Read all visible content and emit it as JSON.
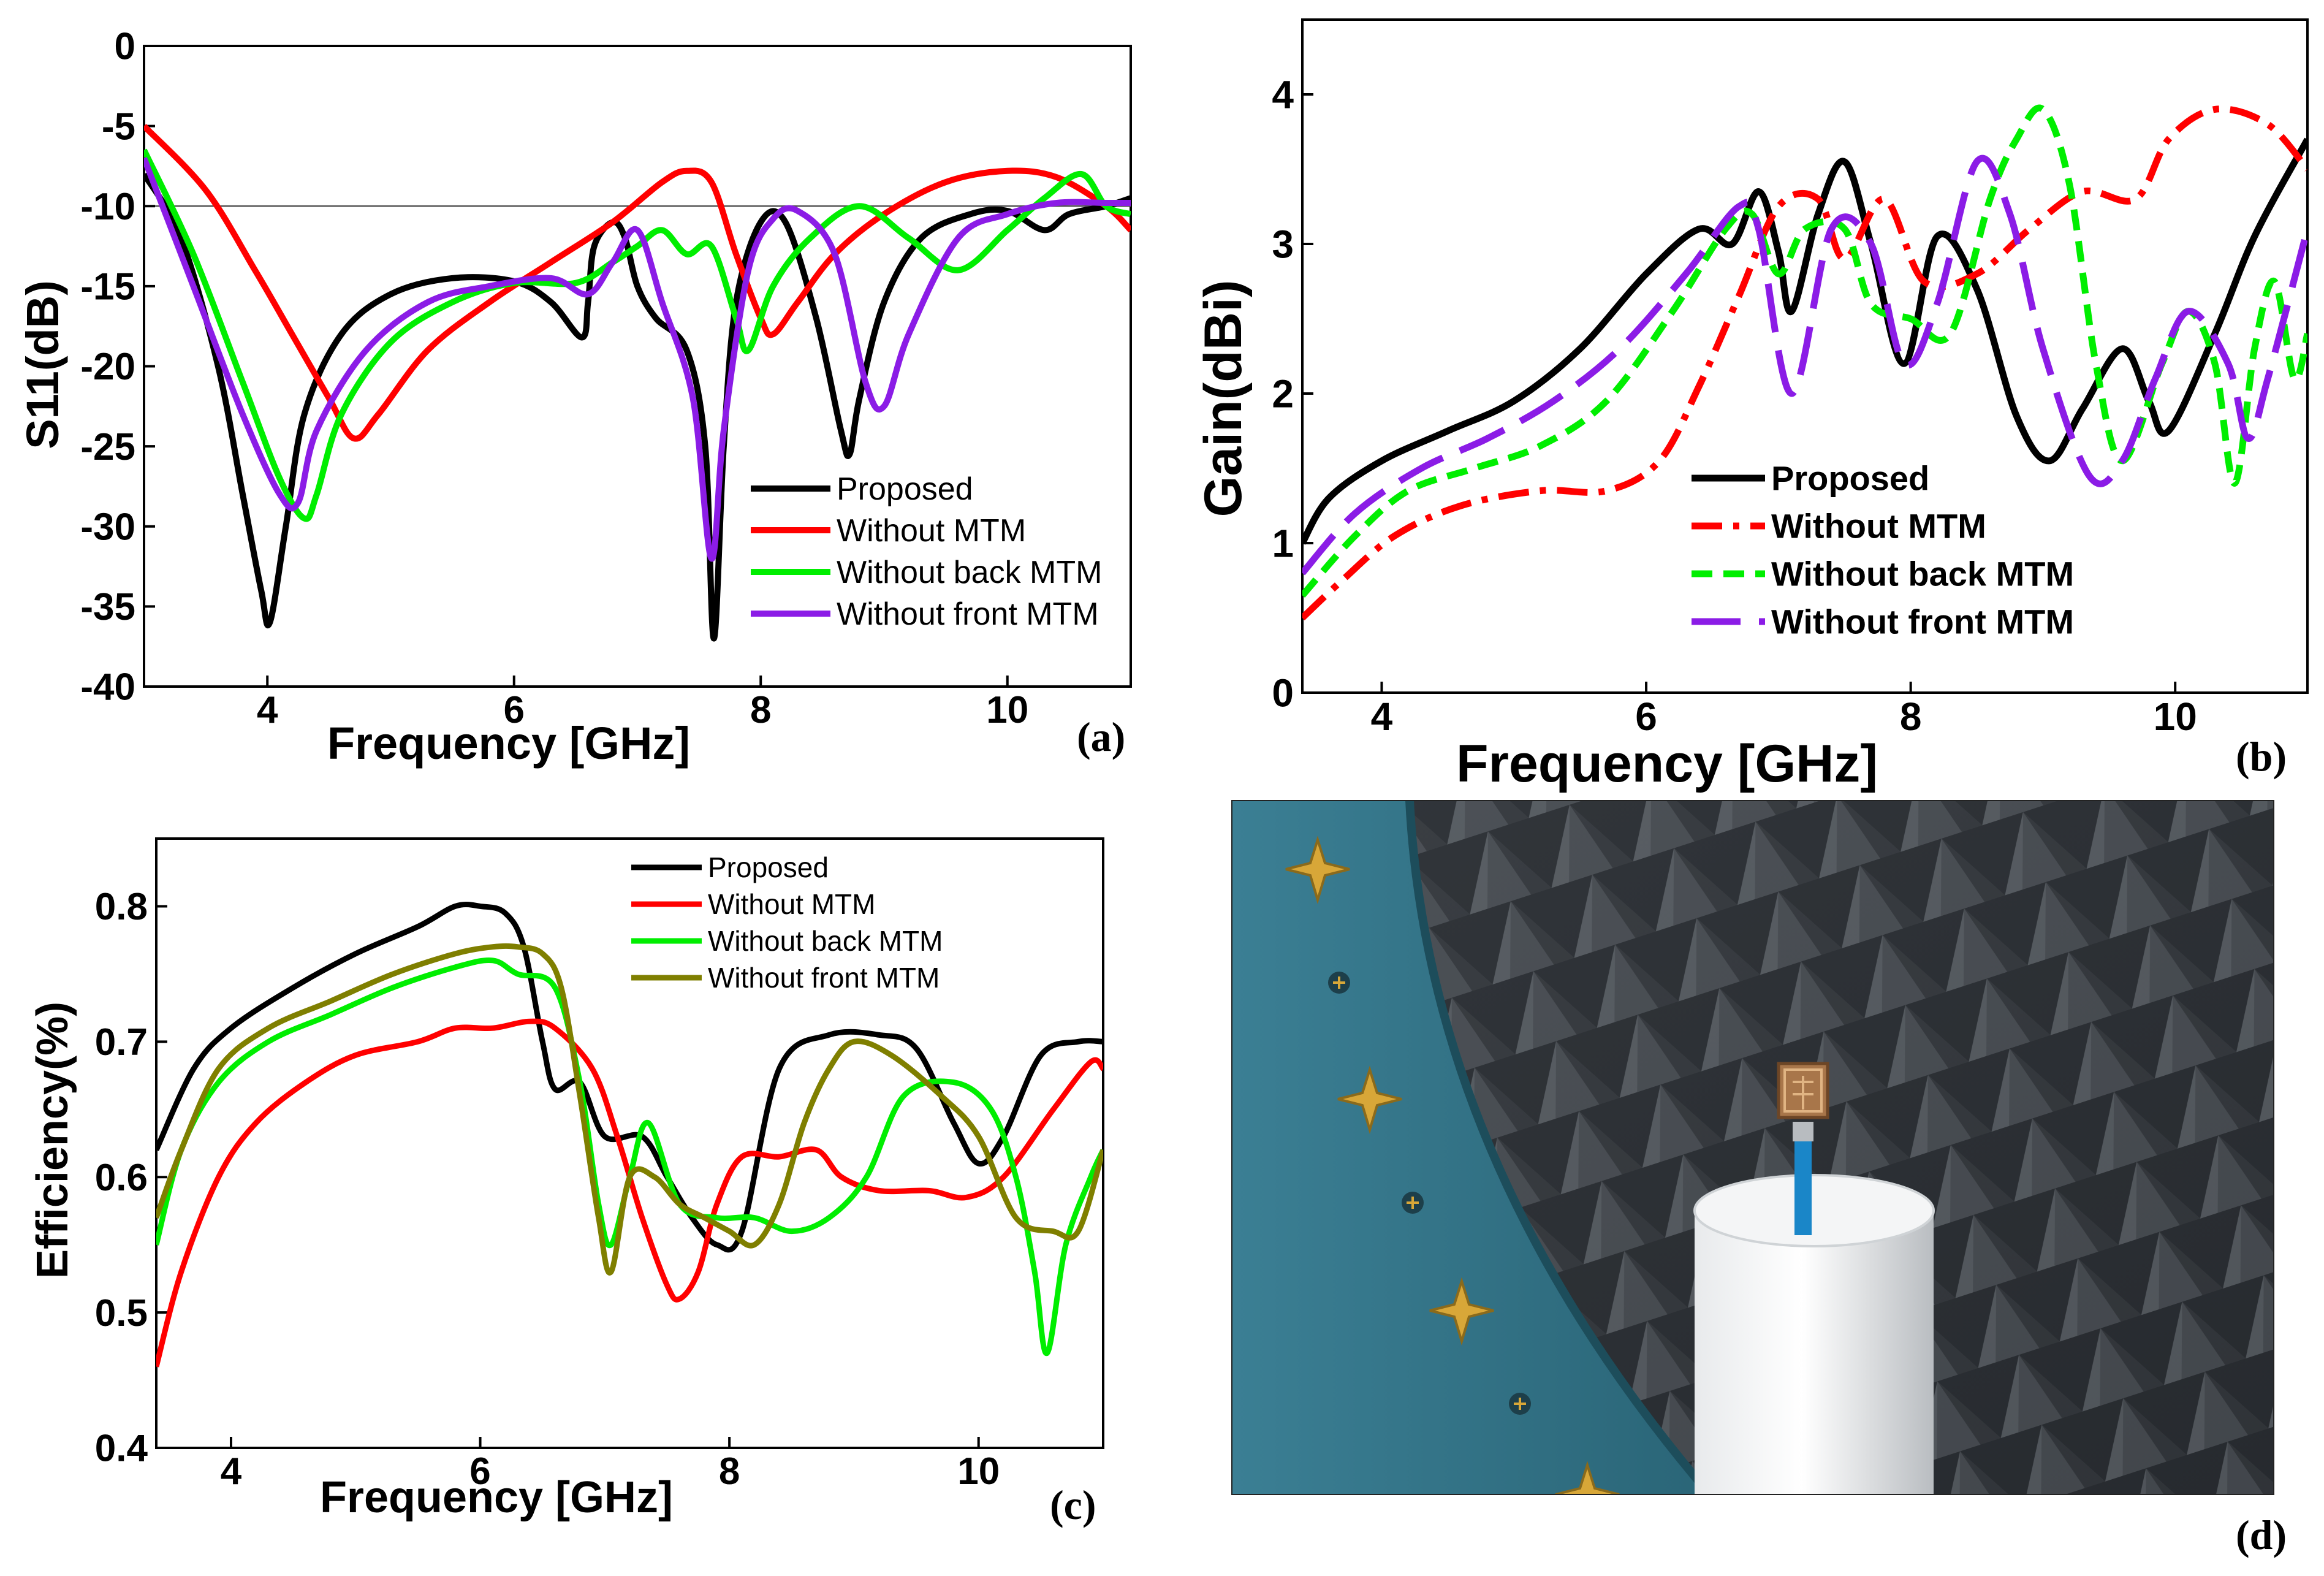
{
  "colors": {
    "proposed": "#000000",
    "without_mtm": "#ff0000",
    "without_back": "#00ee00",
    "without_front_purple": "#8b1ce6",
    "without_front_olive": "#7f7f00"
  },
  "panel_labels": {
    "a": "(a)",
    "b": "(b)",
    "c": "(c)",
    "d": "(d)"
  },
  "photo": {
    "description_icon": "anechoic-chamber-photo",
    "alt": "Antenna prototype mounted on foam cylinder inside anechoic chamber"
  },
  "chart_data": [
    {
      "id": "a",
      "type": "line",
      "title": "",
      "xlabel": "Frequency [GHz]",
      "ylabel": "S11(dB)",
      "xlim": [
        3,
        11
      ],
      "ylim": [
        -40,
        0
      ],
      "xticks": [
        4,
        6,
        8,
        10
      ],
      "yticks": [
        0,
        -5,
        -10,
        -15,
        -20,
        -25,
        -30,
        -35,
        -40
      ],
      "reference_line": -10,
      "legend_position": "lower-right",
      "series": [
        {
          "name": "Proposed",
          "color_key": "proposed",
          "dash": "solid",
          "x": [
            3,
            3.3,
            3.6,
            3.8,
            3.95,
            4.02,
            4.15,
            4.3,
            4.6,
            5,
            5.5,
            6,
            6.3,
            6.55,
            6.6,
            6.65,
            6.8,
            6.9,
            7,
            7.15,
            7.4,
            7.55,
            7.62,
            7.7,
            7.8,
            8,
            8.2,
            8.45,
            8.65,
            8.72,
            8.8,
            9,
            9.3,
            9.7,
            10,
            10.3,
            10.5,
            10.8,
            11
          ],
          "y": [
            -8,
            -12,
            -20,
            -28,
            -34,
            -36,
            -30,
            -23,
            -18,
            -15.5,
            -14.5,
            -14.7,
            -16,
            -18.2,
            -16,
            -12.5,
            -11,
            -12,
            -15,
            -17,
            -19,
            -25,
            -37,
            -25,
            -16,
            -11,
            -11,
            -17,
            -24,
            -25.5,
            -22,
            -16,
            -12,
            -10.5,
            -10.3,
            -11.5,
            -10.5,
            -10,
            -9.5
          ]
        },
        {
          "name": "Without MTM",
          "color_key": "without_mtm",
          "dash": "solid",
          "x": [
            3,
            3.5,
            3.9,
            4.2,
            4.5,
            4.7,
            4.9,
            5.3,
            5.8,
            6.3,
            6.8,
            7.2,
            7.4,
            7.6,
            7.8,
            8,
            8.1,
            8.3,
            8.6,
            9,
            9.5,
            10,
            10.4,
            10.8,
            11
          ],
          "y": [
            -5,
            -9,
            -14,
            -18,
            -22,
            -24.5,
            -23,
            -19,
            -16,
            -13.5,
            -11,
            -8.5,
            -7.8,
            -8.5,
            -13,
            -17,
            -18,
            -16,
            -13,
            -10.5,
            -8.5,
            -7.8,
            -8.2,
            -10,
            -11.5
          ]
        },
        {
          "name": "Without back MTM",
          "color_key": "without_back",
          "dash": "solid",
          "x": [
            3,
            3.4,
            3.8,
            4.1,
            4.3,
            4.4,
            4.6,
            5,
            5.5,
            6,
            6.5,
            6.8,
            7,
            7.2,
            7.4,
            7.6,
            7.8,
            7.9,
            8.1,
            8.4,
            8.8,
            9.2,
            9.6,
            10,
            10.3,
            10.6,
            10.8,
            11
          ],
          "y": [
            -6.5,
            -13,
            -21,
            -27,
            -29.5,
            -28,
            -23,
            -18.5,
            -16,
            -14.8,
            -14.8,
            -13.5,
            -12.5,
            -11.5,
            -13,
            -12.5,
            -17,
            -19,
            -15,
            -12,
            -10,
            -12,
            -14,
            -11.5,
            -9.5,
            -8,
            -10,
            -10.5
          ]
        },
        {
          "name": "Without front MTM",
          "color_key": "without_front_purple",
          "dash": "solid",
          "x": [
            3,
            3.4,
            3.8,
            4.1,
            4.25,
            4.4,
            4.8,
            5.3,
            5.8,
            6.3,
            6.6,
            6.8,
            7,
            7.2,
            7.45,
            7.6,
            7.7,
            7.9,
            8.1,
            8.3,
            8.6,
            8.85,
            9,
            9.2,
            9.6,
            10,
            10.4,
            10.8,
            11
          ],
          "y": [
            -7,
            -15,
            -23,
            -28,
            -28.5,
            -24,
            -19,
            -16,
            -15,
            -14.5,
            -15.5,
            -13.5,
            -11.5,
            -16,
            -22,
            -32,
            -24,
            -14,
            -10.8,
            -10.3,
            -13,
            -21,
            -22.5,
            -18,
            -12,
            -10.5,
            -9.8,
            -9.8,
            -9.8
          ]
        }
      ]
    },
    {
      "id": "b",
      "type": "line",
      "title": "",
      "xlabel": "Frequency [GHz]",
      "ylabel": "Gain(dBi)",
      "xlim": [
        3.4,
        11
      ],
      "ylim": [
        0,
        4.5
      ],
      "xticks": [
        4,
        6,
        8,
        10
      ],
      "yticks": [
        0,
        1,
        2,
        3,
        4
      ],
      "legend_position": "lower-center",
      "series": [
        {
          "name": "Proposed",
          "color_key": "proposed",
          "dash": "solid",
          "x": [
            3.4,
            3.6,
            4,
            4.5,
            5,
            5.5,
            6,
            6.4,
            6.65,
            6.85,
            7,
            7.1,
            7.3,
            7.5,
            7.7,
            7.95,
            8.2,
            8.5,
            8.8,
            9.05,
            9.3,
            9.6,
            9.8,
            9.95,
            10.3,
            10.6,
            11
          ],
          "y": [
            1,
            1.3,
            1.55,
            1.75,
            1.95,
            2.3,
            2.8,
            3.1,
            3.0,
            3.35,
            2.95,
            2.55,
            3.2,
            3.55,
            3.0,
            2.2,
            3.05,
            2.7,
            1.85,
            1.55,
            1.9,
            2.3,
            1.95,
            1.75,
            2.4,
            3.05,
            3.7
          ]
        },
        {
          "name": "Without MTM",
          "color_key": "without_mtm",
          "dash": "dashdot",
          "x": [
            3.4,
            3.7,
            4.1,
            4.6,
            5.2,
            5.7,
            6.1,
            6.4,
            6.7,
            7,
            7.3,
            7.5,
            7.8,
            8.1,
            8.5,
            8.9,
            9.3,
            9.7,
            9.95,
            10.3,
            10.7,
            11
          ],
          "y": [
            0.5,
            0.75,
            1.05,
            1.25,
            1.35,
            1.35,
            1.55,
            2.05,
            2.65,
            3.25,
            3.3,
            2.9,
            3.3,
            2.75,
            2.8,
            3.1,
            3.35,
            3.3,
            3.7,
            3.9,
            3.8,
            3.5
          ]
        },
        {
          "name": "Without back MTM",
          "color_key": "without_back",
          "dash": "dash",
          "x": [
            3.4,
            3.8,
            4.2,
            4.7,
            5.2,
            5.7,
            6.2,
            6.6,
            6.8,
            7,
            7.2,
            7.5,
            7.7,
            8,
            8.3,
            8.6,
            8.8,
            9,
            9.2,
            9.4,
            9.6,
            9.9,
            10.1,
            10.3,
            10.45,
            10.6,
            10.75,
            10.9,
            11
          ],
          "y": [
            0.65,
            1.05,
            1.35,
            1.5,
            1.65,
            1.95,
            2.55,
            3.1,
            3.2,
            2.8,
            3.1,
            3.1,
            2.6,
            2.5,
            2.4,
            3.3,
            3.7,
            3.9,
            3.4,
            2.2,
            1.55,
            2.2,
            2.55,
            2.2,
            1.4,
            2.3,
            2.75,
            2.1,
            2.4
          ]
        },
        {
          "name": "Without front MTM",
          "color_key": "without_front_purple",
          "dash": "longdash",
          "x": [
            3.4,
            3.8,
            4.3,
            4.8,
            5.3,
            5.8,
            6.3,
            6.7,
            6.85,
            7.1,
            7.4,
            7.7,
            7.95,
            8.2,
            8.5,
            8.75,
            9,
            9.35,
            9.6,
            9.85,
            10.1,
            10.4,
            10.55,
            10.7,
            11
          ],
          "y": [
            0.8,
            1.2,
            1.5,
            1.7,
            1.95,
            2.3,
            2.8,
            3.25,
            3.1,
            2.0,
            3.1,
            3.0,
            2.2,
            2.6,
            3.55,
            3.2,
            2.3,
            1.45,
            1.55,
            2.1,
            2.55,
            2.2,
            1.7,
            2.1,
            3.1
          ]
        }
      ]
    },
    {
      "id": "c",
      "type": "line",
      "title": "",
      "xlabel": "Frequency [GHz]",
      "ylabel": "Efficiency(%)",
      "xlim": [
        3.4,
        11
      ],
      "ylim": [
        0.4,
        0.85
      ],
      "xticks": [
        4,
        6,
        8,
        10
      ],
      "yticks": [
        0.4,
        0.5,
        0.6,
        0.7,
        0.8
      ],
      "legend_position": "top-center",
      "series": [
        {
          "name": "Proposed",
          "color_key": "proposed",
          "dash": "solid",
          "x": [
            3.4,
            3.7,
            4,
            4.5,
            5,
            5.5,
            5.8,
            6,
            6.2,
            6.35,
            6.5,
            6.6,
            6.8,
            7,
            7.3,
            7.5,
            7.7,
            7.9,
            8.1,
            8.4,
            8.8,
            9.2,
            9.5,
            9.8,
            10,
            10.2,
            10.5,
            10.8,
            11
          ],
          "y": [
            0.62,
            0.68,
            0.71,
            0.74,
            0.765,
            0.785,
            0.8,
            0.8,
            0.795,
            0.77,
            0.7,
            0.665,
            0.67,
            0.63,
            0.63,
            0.6,
            0.57,
            0.55,
            0.56,
            0.68,
            0.705,
            0.705,
            0.695,
            0.64,
            0.61,
            0.63,
            0.69,
            0.7,
            0.7
          ]
        },
        {
          "name": "Without MTM",
          "color_key": "without_mtm",
          "dash": "solid",
          "x": [
            3.4,
            3.6,
            3.9,
            4.2,
            4.6,
            5,
            5.5,
            5.8,
            6.1,
            6.4,
            6.6,
            6.9,
            7.1,
            7.3,
            7.5,
            7.6,
            7.75,
            7.9,
            8.1,
            8.4,
            8.7,
            8.9,
            9.2,
            9.6,
            9.9,
            10.2,
            10.6,
            10.9,
            11
          ],
          "y": [
            0.46,
            0.53,
            0.6,
            0.64,
            0.67,
            0.69,
            0.7,
            0.71,
            0.71,
            0.715,
            0.71,
            0.68,
            0.63,
            0.57,
            0.52,
            0.51,
            0.53,
            0.58,
            0.615,
            0.615,
            0.62,
            0.6,
            0.59,
            0.59,
            0.585,
            0.6,
            0.65,
            0.685,
            0.68
          ]
        },
        {
          "name": "Without back MTM",
          "color_key": "without_back",
          "dash": "solid",
          "x": [
            3.4,
            3.6,
            3.9,
            4.3,
            4.8,
            5.3,
            5.8,
            6.1,
            6.3,
            6.6,
            6.8,
            6.95,
            7.05,
            7.2,
            7.35,
            7.6,
            7.9,
            8.2,
            8.5,
            8.8,
            9.1,
            9.4,
            9.8,
            10.1,
            10.3,
            10.45,
            10.55,
            10.7,
            10.9,
            11
          ],
          "y": [
            0.55,
            0.62,
            0.67,
            0.7,
            0.72,
            0.74,
            0.755,
            0.76,
            0.75,
            0.74,
            0.67,
            0.58,
            0.55,
            0.6,
            0.64,
            0.58,
            0.57,
            0.57,
            0.56,
            0.57,
            0.6,
            0.66,
            0.67,
            0.65,
            0.6,
            0.53,
            0.47,
            0.55,
            0.6,
            0.62
          ]
        },
        {
          "name": "Without front MTM",
          "color_key": "without_front_olive",
          "dash": "solid",
          "x": [
            3.4,
            3.6,
            3.9,
            4.3,
            4.8,
            5.3,
            5.8,
            6.1,
            6.3,
            6.5,
            6.65,
            6.8,
            6.95,
            7.05,
            7.2,
            7.4,
            7.6,
            7.8,
            8,
            8.2,
            8.4,
            8.6,
            8.8,
            9,
            9.3,
            9.7,
            10,
            10.3,
            10.6,
            10.8,
            11
          ],
          "y": [
            0.57,
            0.62,
            0.68,
            0.71,
            0.73,
            0.75,
            0.765,
            0.77,
            0.77,
            0.765,
            0.74,
            0.66,
            0.57,
            0.53,
            0.6,
            0.6,
            0.58,
            0.57,
            0.56,
            0.55,
            0.58,
            0.64,
            0.68,
            0.7,
            0.69,
            0.66,
            0.63,
            0.57,
            0.56,
            0.56,
            0.62
          ]
        }
      ]
    }
  ]
}
